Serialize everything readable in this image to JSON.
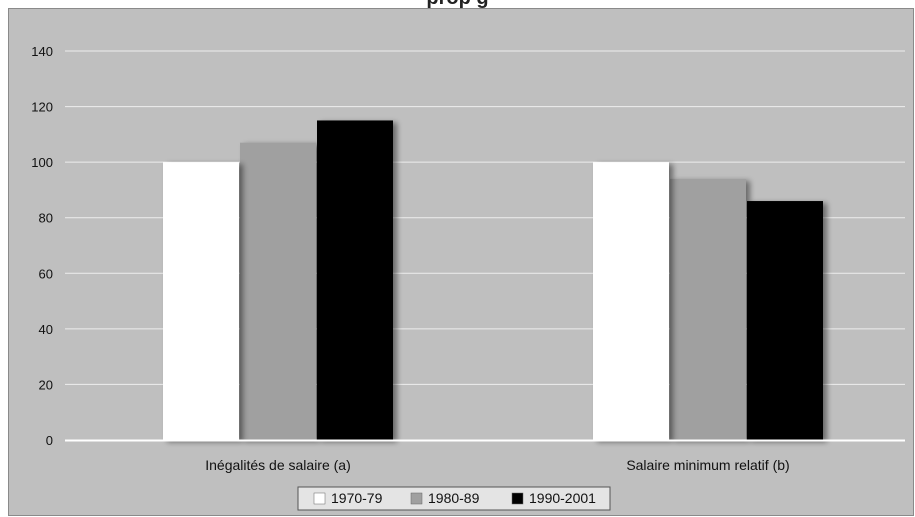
{
  "chart_data": {
    "type": "bar",
    "title": "",
    "title_visible_fragment": "prop                                          g",
    "xlabel": "",
    "ylabel": "",
    "categories": [
      "Inégalités de salaire (a)",
      "Salaire minimum relatif (b)"
    ],
    "series": [
      {
        "name": "1970-79",
        "values": [
          100,
          100
        ]
      },
      {
        "name": "1980-89",
        "values": [
          107,
          94
        ]
      },
      {
        "name": "1990-2001",
        "values": [
          115,
          86
        ]
      }
    ],
    "ylim": [
      0,
      140
    ],
    "yticks": [
      0,
      20,
      40,
      60,
      80,
      100,
      120,
      140
    ],
    "grid": true,
    "legend_position": "bottom",
    "colors": {
      "plot_background": "#bfbfbf",
      "gridline": "#eeeeee",
      "series": [
        "#ffffff",
        "#a0a0a0",
        "#000000"
      ]
    }
  }
}
